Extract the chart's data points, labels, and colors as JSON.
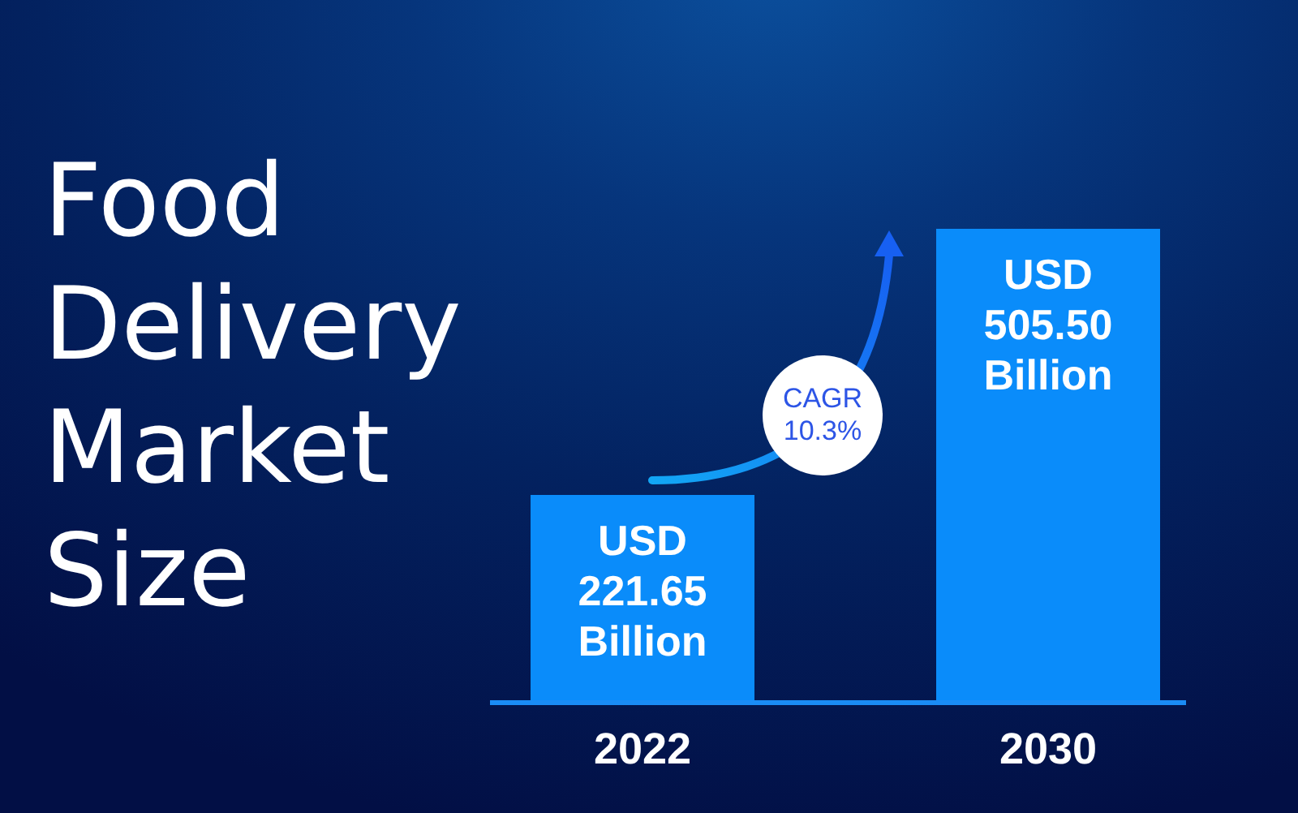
{
  "chart_data": {
    "type": "bar",
    "title": "Food Delivery Market Size",
    "categories": [
      "2022",
      "2030"
    ],
    "values": [
      221.65,
      505.5
    ],
    "value_labels": [
      "USD 221.65 Billion",
      "USD 505.50 Billion"
    ],
    "color": "#0a8cfa",
    "annotations": [
      "CAGR 10.3%"
    ]
  }
}
